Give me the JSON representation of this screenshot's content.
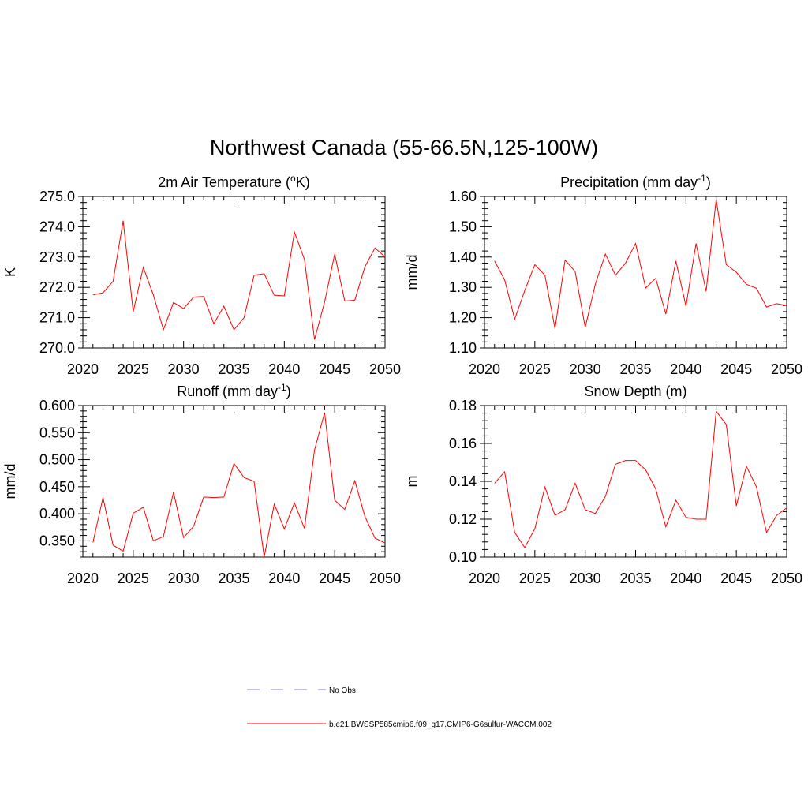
{
  "title": "Northwest Canada (55-66.5N,125-100W)",
  "colors": {
    "series": "#ff0000",
    "obs": "#9999dd",
    "axis": "#000000"
  },
  "legend": {
    "items": [
      {
        "label": "No Obs",
        "style": "dashed",
        "color": "#9999dd"
      },
      {
        "label": "b.e21.BWSSP585cmip6.f09_g17.CMIP6-G6sulfur-WACCM.002",
        "style": "solid",
        "color": "#ff0000"
      }
    ]
  },
  "chart_data": [
    {
      "type": "line",
      "title": "2m Air Temperature (",
      "title_sup": "o",
      "title_after": "K)",
      "ylabel": "K",
      "xlim": [
        2020,
        2050
      ],
      "ylim": [
        270.0,
        275.0
      ],
      "xticks": [
        "2020",
        "2025",
        "2030",
        "2035",
        "2040",
        "2045",
        "2050"
      ],
      "yticks": [
        "270.0",
        "271.0",
        "272.0",
        "273.0",
        "274.0",
        "275.0"
      ],
      "series": [
        {
          "x": [
            2021,
            2022,
            2023,
            2024,
            2025,
            2026,
            2027,
            2028,
            2029,
            2030,
            2031,
            2032,
            2033,
            2034,
            2035,
            2036,
            2037,
            2038,
            2039,
            2040,
            2041,
            2042,
            2043,
            2044,
            2045,
            2046,
            2047,
            2048,
            2049,
            2050
          ],
          "values": [
            271.75,
            271.82,
            272.2,
            274.2,
            271.2,
            272.66,
            271.75,
            270.6,
            271.5,
            271.3,
            271.68,
            271.7,
            270.8,
            271.38,
            270.6,
            271.0,
            272.4,
            272.45,
            271.74,
            271.72,
            273.83,
            272.92,
            270.28,
            271.52,
            273.1,
            271.55,
            271.58,
            272.68,
            273.3,
            273.0
          ]
        }
      ]
    },
    {
      "type": "line",
      "title": "Precipitation (mm day",
      "title_sup": "-1",
      "title_after": ")",
      "ylabel": "mm/d",
      "xlim": [
        2020,
        2050
      ],
      "ylim": [
        1.1,
        1.6
      ],
      "xticks": [
        "2020",
        "2025",
        "2030",
        "2035",
        "2040",
        "2045",
        "2050"
      ],
      "yticks": [
        "1.10",
        "1.20",
        "1.30",
        "1.40",
        "1.50",
        "1.60"
      ],
      "series": [
        {
          "x": [
            2021,
            2022,
            2023,
            2024,
            2025,
            2026,
            2027,
            2028,
            2029,
            2030,
            2031,
            2032,
            2033,
            2034,
            2035,
            2036,
            2037,
            2038,
            2039,
            2040,
            2041,
            2042,
            2043,
            2044,
            2045,
            2046,
            2047,
            2048,
            2049,
            2050
          ],
          "values": [
            1.387,
            1.325,
            1.195,
            1.29,
            1.375,
            1.34,
            1.164,
            1.39,
            1.352,
            1.168,
            1.31,
            1.41,
            1.34,
            1.38,
            1.445,
            1.298,
            1.33,
            1.212,
            1.387,
            1.238,
            1.445,
            1.287,
            1.59,
            1.375,
            1.35,
            1.31,
            1.297,
            1.235,
            1.246,
            1.24
          ]
        }
      ]
    },
    {
      "type": "line",
      "title": "Runoff (mm day",
      "title_sup": "-1",
      "title_after": ")",
      "ylabel": "mm/d",
      "xlim": [
        2020,
        2050
      ],
      "ylim": [
        0.32,
        0.6
      ],
      "xticks": [
        "2020",
        "2025",
        "2030",
        "2035",
        "2040",
        "2045",
        "2050"
      ],
      "yticks": [
        "0.350",
        "0.400",
        "0.450",
        "0.500",
        "0.550",
        "0.600"
      ],
      "series": [
        {
          "x": [
            2021,
            2022,
            2023,
            2024,
            2025,
            2026,
            2027,
            2028,
            2029,
            2030,
            2031,
            2032,
            2033,
            2034,
            2035,
            2036,
            2037,
            2038,
            2039,
            2040,
            2041,
            2042,
            2043,
            2044,
            2045,
            2046,
            2047,
            2048,
            2049,
            2050
          ],
          "values": [
            0.347,
            0.43,
            0.342,
            0.331,
            0.401,
            0.412,
            0.35,
            0.358,
            0.44,
            0.356,
            0.377,
            0.431,
            0.43,
            0.431,
            0.493,
            0.467,
            0.46,
            0.32,
            0.418,
            0.372,
            0.42,
            0.373,
            0.518,
            0.587,
            0.425,
            0.408,
            0.461,
            0.395,
            0.355,
            0.346
          ]
        }
      ]
    },
    {
      "type": "line",
      "title": "Snow Depth (m)",
      "title_sup": "",
      "title_after": "",
      "ylabel": "m",
      "xlim": [
        2020,
        2050
      ],
      "ylim": [
        0.1,
        0.18
      ],
      "xticks": [
        "2020",
        "2025",
        "2030",
        "2035",
        "2040",
        "2045",
        "2050"
      ],
      "yticks": [
        "0.10",
        "0.12",
        "0.14",
        "0.16",
        "0.18"
      ],
      "series": [
        {
          "x": [
            2021,
            2022,
            2023,
            2024,
            2025,
            2026,
            2027,
            2028,
            2029,
            2030,
            2031,
            2032,
            2033,
            2034,
            2035,
            2036,
            2037,
            2038,
            2039,
            2040,
            2041,
            2042,
            2043,
            2044,
            2045,
            2046,
            2047,
            2048,
            2049,
            2050
          ],
          "values": [
            0.139,
            0.145,
            0.113,
            0.105,
            0.115,
            0.137,
            0.122,
            0.125,
            0.139,
            0.125,
            0.123,
            0.132,
            0.149,
            0.151,
            0.151,
            0.146,
            0.136,
            0.116,
            0.13,
            0.121,
            0.12,
            0.12,
            0.177,
            0.17,
            0.127,
            0.148,
            0.137,
            0.113,
            0.122,
            0.126
          ]
        }
      ]
    }
  ]
}
